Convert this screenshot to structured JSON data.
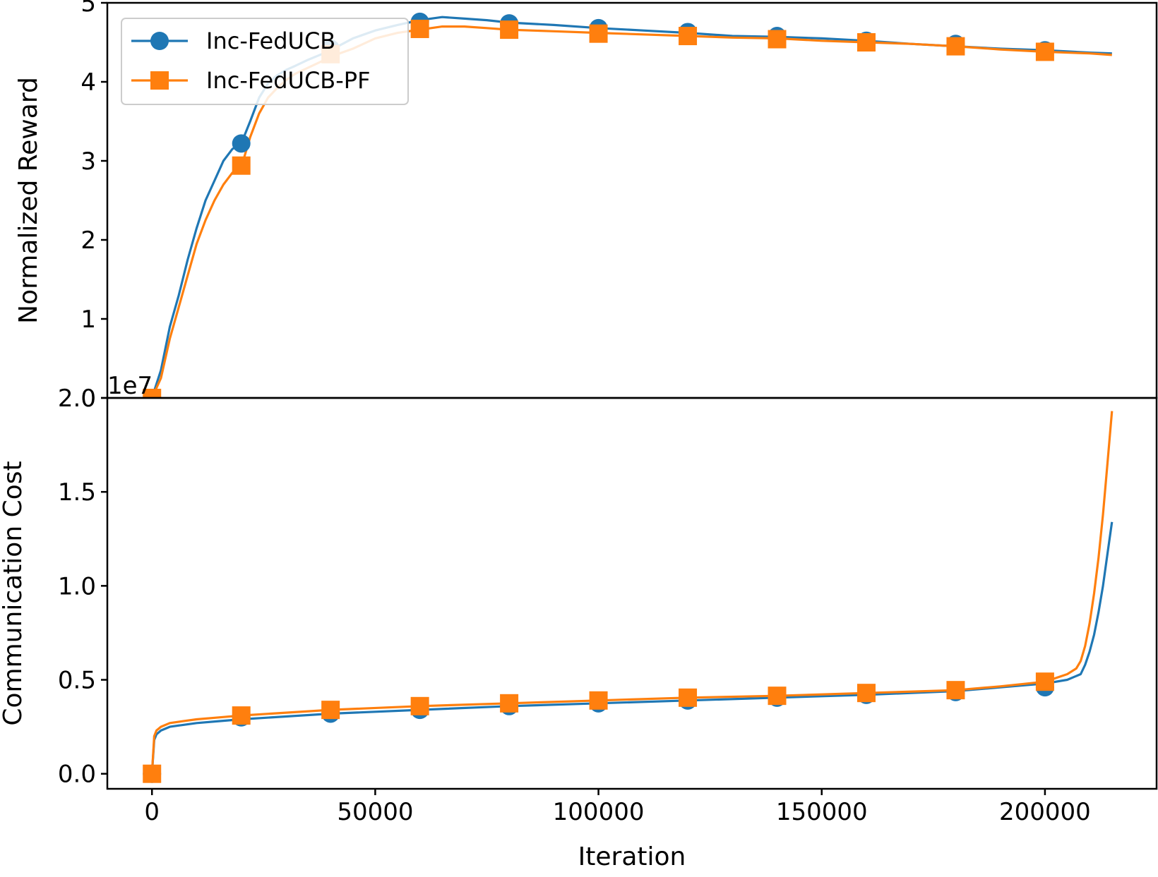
{
  "colors": {
    "blue": "#1f77b4",
    "orange": "#ff7f0e"
  },
  "chart_data": [
    {
      "type": "line",
      "panel": "top",
      "xlabel": "",
      "ylabel": "Normalized Reward",
      "xlim": [
        -10000,
        225000
      ],
      "ylim": [
        0,
        5
      ],
      "yticks": [
        0,
        1,
        2,
        3,
        4,
        5
      ],
      "ytick_labels": [
        "0",
        "1",
        "2",
        "3",
        "4",
        "5"
      ],
      "legend": "top-left",
      "grid": false,
      "series": [
        {
          "name": "Inc-FedUCB",
          "color": "#1f77b4",
          "marker": "circle",
          "x": [
            0,
            2000,
            4000,
            6000,
            8000,
            10000,
            12000,
            14000,
            16000,
            18000,
            20000,
            22000,
            24000,
            26000,
            28000,
            30000,
            32000,
            35000,
            38000,
            40000,
            45000,
            50000,
            55000,
            60000,
            65000,
            70000,
            75000,
            80000,
            90000,
            100000,
            110000,
            120000,
            130000,
            140000,
            150000,
            160000,
            170000,
            180000,
            190000,
            200000,
            210000,
            215000
          ],
          "y": [
            0,
            0.35,
            0.9,
            1.3,
            1.75,
            2.15,
            2.5,
            2.75,
            3.0,
            3.15,
            3.22,
            3.5,
            3.8,
            3.98,
            4.08,
            4.15,
            4.2,
            4.28,
            4.35,
            4.4,
            4.55,
            4.65,
            4.72,
            4.78,
            4.82,
            4.8,
            4.78,
            4.75,
            4.72,
            4.68,
            4.65,
            4.62,
            4.58,
            4.57,
            4.55,
            4.52,
            4.48,
            4.45,
            4.42,
            4.4,
            4.37,
            4.36
          ],
          "marker_x": [
            0,
            20000,
            40000,
            60000,
            80000,
            100000,
            120000,
            140000,
            160000,
            180000,
            200000
          ],
          "marker_y": [
            0,
            3.22,
            4.42,
            4.76,
            4.74,
            4.68,
            4.63,
            4.58,
            4.52,
            4.48,
            4.4
          ]
        },
        {
          "name": "Inc-FedUCB-PF",
          "color": "#ff7f0e",
          "marker": "square",
          "x": [
            0,
            2000,
            4000,
            6000,
            8000,
            10000,
            12000,
            14000,
            16000,
            18000,
            20000,
            22000,
            24000,
            26000,
            28000,
            30000,
            32000,
            35000,
            38000,
            40000,
            45000,
            50000,
            55000,
            60000,
            65000,
            70000,
            75000,
            80000,
            90000,
            100000,
            110000,
            120000,
            130000,
            140000,
            150000,
            160000,
            170000,
            180000,
            190000,
            200000,
            210000,
            215000
          ],
          "y": [
            0,
            0.25,
            0.75,
            1.15,
            1.55,
            1.95,
            2.25,
            2.5,
            2.7,
            2.85,
            2.92,
            3.3,
            3.6,
            3.8,
            3.92,
            4.02,
            4.1,
            4.18,
            4.26,
            4.32,
            4.42,
            4.55,
            4.62,
            4.66,
            4.7,
            4.7,
            4.68,
            4.66,
            4.64,
            4.62,
            4.6,
            4.58,
            4.56,
            4.55,
            4.52,
            4.5,
            4.48,
            4.45,
            4.41,
            4.38,
            4.36,
            4.34
          ],
          "marker_x": [
            0,
            20000,
            40000,
            60000,
            80000,
            100000,
            120000,
            140000,
            160000,
            180000,
            200000
          ],
          "marker_y": [
            0,
            2.94,
            4.35,
            4.67,
            4.66,
            4.61,
            4.58,
            4.54,
            4.5,
            4.45,
            4.38
          ]
        }
      ]
    },
    {
      "type": "line",
      "panel": "bottom",
      "xlabel": "Iteration",
      "ylabel": "Communication Cost",
      "offset_text": "1e7",
      "xlim": [
        -10000,
        225000
      ],
      "ylim": [
        -0.08,
        2.0
      ],
      "xticks": [
        0,
        50000,
        100000,
        150000,
        200000
      ],
      "xtick_labels": [
        "0",
        "50000",
        "100000",
        "150000",
        "200000"
      ],
      "yticks": [
        0.0,
        0.5,
        1.0,
        1.5,
        2.0
      ],
      "ytick_labels": [
        "0.0",
        "0.5",
        "1.0",
        "1.5",
        "2.0"
      ],
      "grid": false,
      "series": [
        {
          "name": "Inc-FedUCB",
          "color": "#1f77b4",
          "marker": "circle",
          "x": [
            0,
            500,
            1000,
            2000,
            4000,
            7000,
            10000,
            15000,
            20000,
            30000,
            40000,
            60000,
            80000,
            100000,
            120000,
            140000,
            160000,
            180000,
            190000,
            200000,
            205000,
            208000,
            209000,
            210000,
            211000,
            212000,
            213000,
            214000,
            215000
          ],
          "y": [
            0,
            0.18,
            0.21,
            0.23,
            0.25,
            0.26,
            0.27,
            0.28,
            0.29,
            0.305,
            0.32,
            0.34,
            0.36,
            0.375,
            0.39,
            0.405,
            0.42,
            0.44,
            0.46,
            0.48,
            0.5,
            0.53,
            0.58,
            0.65,
            0.74,
            0.86,
            1.0,
            1.17,
            1.34
          ],
          "marker_x": [
            0,
            20000,
            40000,
            60000,
            80000,
            100000,
            120000,
            140000,
            160000,
            180000,
            200000
          ],
          "marker_y": [
            0,
            0.3,
            0.32,
            0.34,
            0.36,
            0.375,
            0.39,
            0.405,
            0.42,
            0.435,
            0.46
          ]
        },
        {
          "name": "Inc-FedUCB-PF",
          "color": "#ff7f0e",
          "marker": "square",
          "x": [
            0,
            500,
            1000,
            2000,
            4000,
            7000,
            10000,
            15000,
            20000,
            30000,
            40000,
            60000,
            80000,
            100000,
            120000,
            140000,
            160000,
            180000,
            190000,
            200000,
            205000,
            207000,
            208000,
            209000,
            210000,
            211000,
            212000,
            213000,
            214000,
            215000
          ],
          "y": [
            0,
            0.2,
            0.23,
            0.25,
            0.27,
            0.28,
            0.29,
            0.3,
            0.31,
            0.325,
            0.34,
            0.36,
            0.375,
            0.39,
            0.405,
            0.415,
            0.43,
            0.445,
            0.465,
            0.49,
            0.53,
            0.56,
            0.6,
            0.68,
            0.8,
            0.96,
            1.15,
            1.38,
            1.65,
            1.93
          ],
          "marker_x": [
            0,
            20000,
            40000,
            60000,
            80000,
            100000,
            120000,
            140000,
            160000,
            180000,
            200000
          ],
          "marker_y": [
            0,
            0.31,
            0.34,
            0.36,
            0.375,
            0.39,
            0.405,
            0.415,
            0.43,
            0.445,
            0.49
          ]
        }
      ]
    }
  ]
}
